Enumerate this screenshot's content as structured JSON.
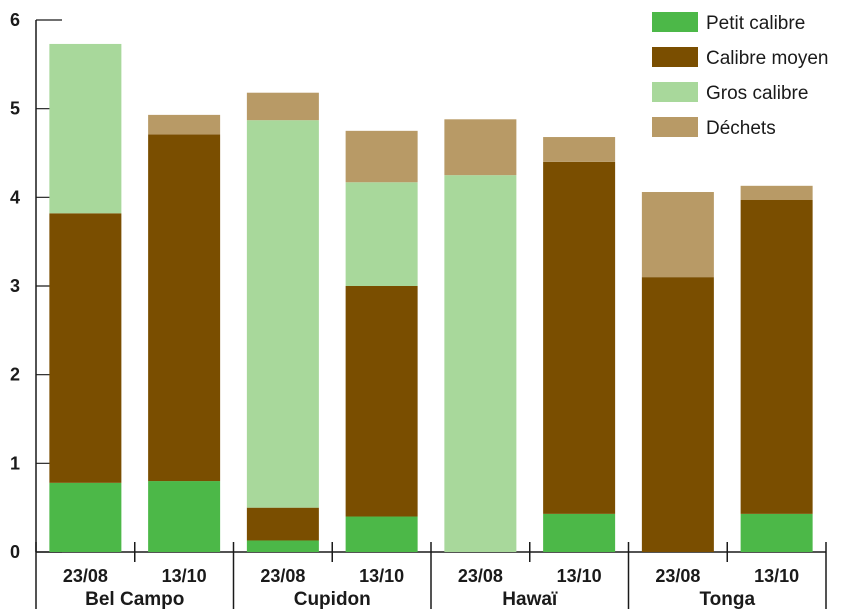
{
  "chart_data": {
    "type": "bar",
    "stacked": true,
    "groups": [
      "Bel Campo",
      "Cupidon",
      "Hawaï",
      "Tonga"
    ],
    "categories": [
      "23/08",
      "13/10",
      "23/08",
      "13/10",
      "23/08",
      "13/10",
      "23/08",
      "13/10"
    ],
    "series": [
      {
        "name": "Petit calibre",
        "color": "#4cb848",
        "values": [
          0.78,
          0.8,
          0.13,
          0.4,
          0.0,
          0.43,
          0.0,
          0.43
        ]
      },
      {
        "name": "Calibre moyen",
        "color": "#7a4e00",
        "values": [
          3.04,
          3.91,
          0.37,
          2.6,
          0.0,
          3.97,
          3.1,
          3.54
        ]
      },
      {
        "name": "Gros calibre",
        "color": "#a8d89b",
        "values": [
          1.91,
          0.0,
          4.37,
          1.17,
          4.25,
          0.0,
          0.0,
          0.0
        ]
      },
      {
        "name": "Déchets",
        "color": "#b89a66",
        "values": [
          0.0,
          0.22,
          0.31,
          0.58,
          0.63,
          0.28,
          0.96,
          0.16
        ]
      }
    ],
    "yticks": [
      "0",
      "1",
      "2",
      "3",
      "4",
      "5",
      "6"
    ],
    "ylim": [
      0,
      6
    ],
    "grid": false,
    "legend_position": "top-right"
  }
}
